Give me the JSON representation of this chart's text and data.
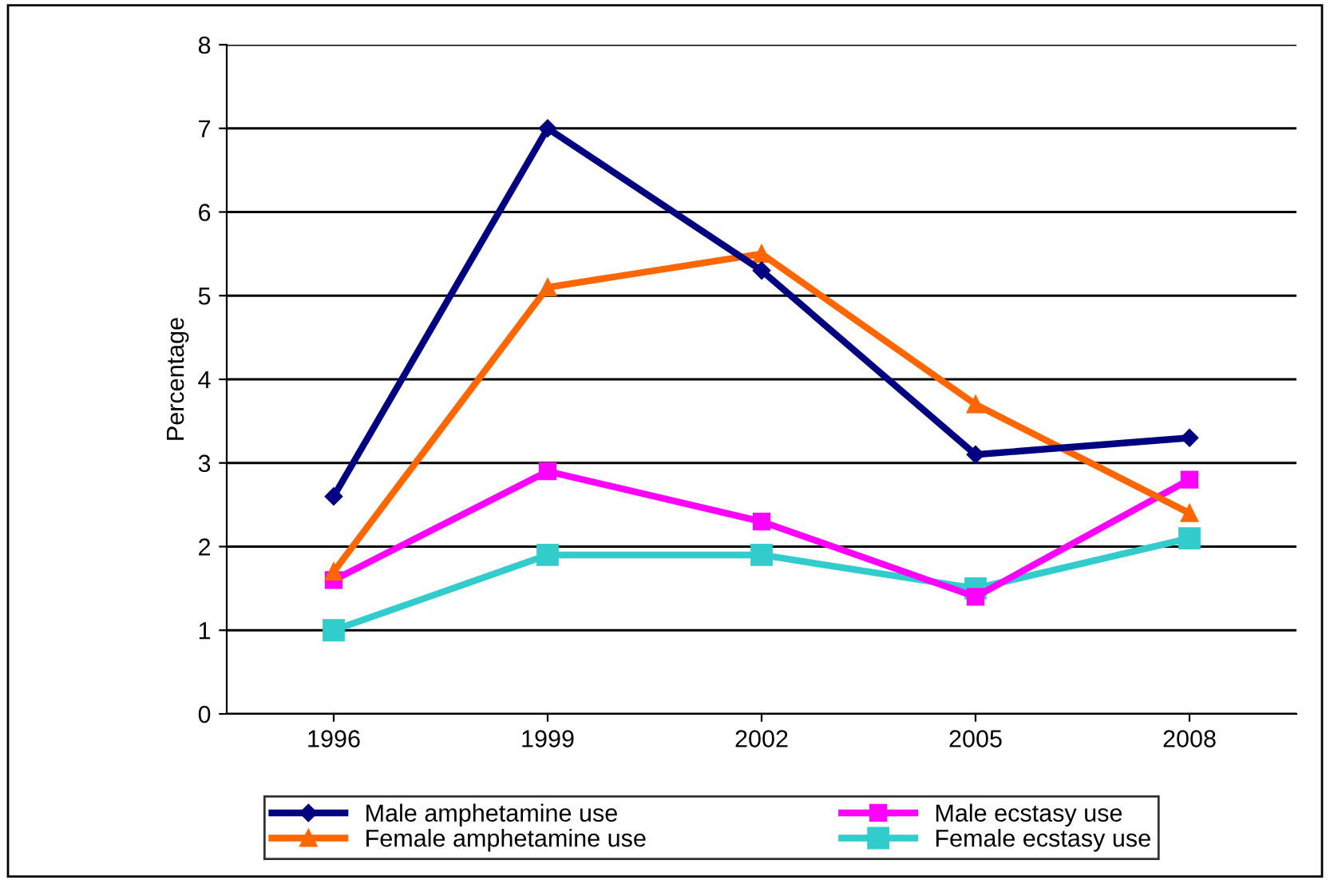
{
  "chart_data": {
    "type": "line",
    "ylabel": "Percentage",
    "categories": [
      "1996",
      "1999",
      "2002",
      "2005",
      "2008"
    ],
    "series": [
      {
        "name": "Male amphetamine use",
        "color": "#000080",
        "marker": "diamond",
        "values": [
          2.6,
          7.0,
          5.3,
          3.1,
          3.3
        ]
      },
      {
        "name": "Female amphetamine use",
        "color": "#ff6600",
        "marker": "triangle",
        "values": [
          1.7,
          5.1,
          5.5,
          3.7,
          2.4
        ]
      },
      {
        "name": "Male ecstasy use",
        "color": "#ff00ff",
        "marker": "square",
        "values": [
          1.6,
          2.9,
          2.3,
          1.4,
          2.8
        ]
      },
      {
        "name": "Female ecstasy use",
        "color": "#33cccc",
        "marker": "square",
        "values": [
          1.0,
          1.9,
          1.9,
          1.5,
          2.1
        ]
      }
    ],
    "ylim": [
      0,
      8
    ],
    "yticks": [
      0,
      1,
      2,
      3,
      4,
      5,
      6,
      7,
      8
    ],
    "grid": "y",
    "legend": "bottom",
    "line_style": "solid"
  }
}
